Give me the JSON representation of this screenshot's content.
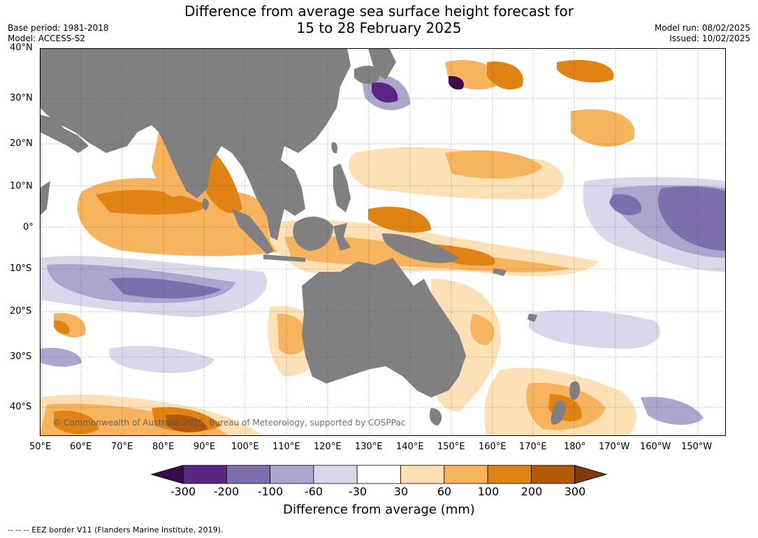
{
  "title": {
    "line1": "Difference from average sea surface height forecast for",
    "line2": "15 to 28 February 2025"
  },
  "meta_left": {
    "base_period": "Base period: 1981-2018",
    "model": "Model: ACCESS-S2"
  },
  "meta_right": {
    "model_run": "Model run: 08/02/2025",
    "issued": "Issued: 10/02/2025"
  },
  "map": {
    "copyright": "© Commonwealth of Australia 2025, Bureau of Meteorology, supported by COSPPac",
    "ocean_color": "#ffffff",
    "land_color": "#808080",
    "lat_labels": [
      "40°N",
      "30°N",
      "20°N",
      "10°N",
      "0°",
      "10°S",
      "20°S",
      "30°S",
      "40°S"
    ],
    "lon_labels": [
      "50°E",
      "60°E",
      "70°E",
      "80°E",
      "90°E",
      "100°E",
      "110°E",
      "120°E",
      "130°E",
      "140°E",
      "150°E",
      "160°E",
      "170°E",
      "180°",
      "170°W",
      "160°W",
      "150°W"
    ]
  },
  "colorbar": {
    "label": "Difference from average (mm)",
    "ticks": [
      "-300",
      "-200",
      "-100",
      "-60",
      "-30",
      "30",
      "60",
      "100",
      "200",
      "300"
    ],
    "colors": [
      "#3a0b4e",
      "#5a2686",
      "#7d6fad",
      "#aca6cf",
      "#d8d8ea",
      "#ffffff",
      "#fde0b5",
      "#f8b35e",
      "#e08214",
      "#b35806",
      "#7f3b08"
    ]
  },
  "footer": {
    "eez_note": "--  --  -- EEZ border V11 (Flanders Marine Institute, 2019)."
  }
}
